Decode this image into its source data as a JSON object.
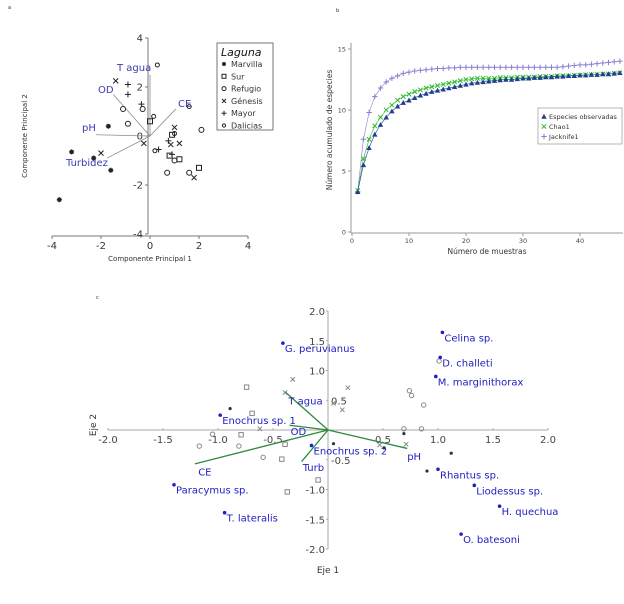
{
  "chart_data": [
    {
      "panel_letter": "a",
      "type": "scatter",
      "xlabel": "Componente Principal 1",
      "ylabel": "Componente Principal 2",
      "xlim": [
        -4,
        4
      ],
      "ylim": [
        -4,
        4
      ],
      "xticks": [
        -4,
        -2,
        0,
        2,
        4
      ],
      "yticks": [
        -4,
        -2,
        0,
        2,
        4
      ],
      "grid": false,
      "legend": {
        "title": "Laguna",
        "placement": "top-right"
      },
      "series": [
        {
          "name": "Marvilla",
          "marker": "star",
          "points": [
            [
              -3.7,
              -2.6
            ],
            [
              -3.2,
              -0.65
            ],
            [
              -2.3,
              -0.9
            ],
            [
              -1.6,
              -1.4
            ],
            [
              -1.7,
              0.4
            ]
          ]
        },
        {
          "name": "Sur",
          "marker": "square",
          "points": [
            [
              0,
              0.6
            ],
            [
              0.9,
              0.05
            ],
            [
              1.2,
              -0.95
            ],
            [
              2.0,
              -1.3
            ],
            [
              0.8,
              -0.8
            ]
          ]
        },
        {
          "name": "Refugio",
          "marker": "circle",
          "points": [
            [
              -1.1,
              1.1
            ],
            [
              -0.9,
              0.5
            ],
            [
              -0.3,
              1.1
            ],
            [
              0.7,
              -1.5
            ],
            [
              1.6,
              -1.5
            ],
            [
              2.1,
              0.25
            ],
            [
              1.0,
              -1.0
            ]
          ]
        },
        {
          "name": "Génesis",
          "marker": "x",
          "points": [
            [
              -1.4,
              2.25
            ],
            [
              -2.0,
              -0.7
            ],
            [
              1.0,
              0.35
            ],
            [
              1.2,
              -0.3
            ],
            [
              1.8,
              -1.7
            ],
            [
              0.85,
              -0.35
            ],
            [
              -0.25,
              -0.3
            ]
          ]
        },
        {
          "name": "Mayor",
          "marker": "plus",
          "points": [
            [
              -0.9,
              2.1
            ],
            [
              -0.9,
              1.7
            ],
            [
              0.35,
              -0.55
            ],
            [
              0.75,
              -0.2
            ],
            [
              0.9,
              -0.75
            ],
            [
              -0.35,
              1.3
            ]
          ]
        },
        {
          "name": "Dalicias",
          "marker": "small-circle",
          "points": [
            [
              0.3,
              2.9
            ],
            [
              1.6,
              1.2
            ],
            [
              0.15,
              0.8
            ],
            [
              1.0,
              0.1
            ],
            [
              0.2,
              -0.6
            ]
          ]
        }
      ],
      "vectors": [
        {
          "label": "T agua",
          "x": 0,
          "y": 2.5
        },
        {
          "label": "OD",
          "x": -1.5,
          "y": 1.7
        },
        {
          "label": "CE",
          "x": 1.05,
          "y": 1.1
        },
        {
          "label": "pH",
          "x": -2.2,
          "y": 0.05
        },
        {
          "label": "Turbidez",
          "x": -1.75,
          "y": -0.9
        }
      ],
      "vector_color": "#8a8a8a",
      "label_color": "#3b3bb0"
    },
    {
      "panel_letter": "b",
      "type": "line",
      "xlabel": "Número de muestras",
      "ylabel": "Número acumulado de especies",
      "xlim": [
        0,
        47.5
      ],
      "ylim": [
        0,
        15
      ],
      "xticks": [
        0,
        10,
        20,
        30,
        40
      ],
      "yticks": [
        0,
        5,
        10,
        15
      ],
      "grid": false,
      "legend": {
        "placement": "right"
      },
      "x": [
        1,
        2,
        3,
        4,
        5,
        6,
        7,
        8,
        9,
        10,
        11,
        12,
        13,
        14,
        15,
        16,
        17,
        18,
        19,
        20,
        21,
        22,
        23,
        24,
        25,
        26,
        27,
        28,
        29,
        30,
        31,
        32,
        33,
        34,
        35,
        36,
        37,
        38,
        39,
        40,
        41,
        42,
        43,
        44,
        45,
        46,
        47
      ],
      "series": [
        {
          "name": "Especies observadas",
          "marker": "triangle",
          "color": "#1f3f8f",
          "values": [
            3.3,
            5.5,
            6.9,
            8.0,
            8.8,
            9.4,
            9.9,
            10.3,
            10.6,
            10.8,
            11.0,
            11.2,
            11.35,
            11.5,
            11.6,
            11.7,
            11.8,
            11.9,
            12.0,
            12.1,
            12.2,
            12.25,
            12.3,
            12.35,
            12.4,
            12.45,
            12.5,
            12.5,
            12.55,
            12.6,
            12.6,
            12.65,
            12.65,
            12.7,
            12.7,
            12.75,
            12.75,
            12.8,
            12.8,
            12.85,
            12.85,
            12.9,
            12.9,
            12.95,
            12.95,
            13.0,
            13.05
          ]
        },
        {
          "name": "Chao1",
          "marker": "x",
          "color": "#2db82d",
          "values": [
            3.4,
            6.0,
            7.6,
            8.7,
            9.4,
            10.0,
            10.4,
            10.8,
            11.1,
            11.3,
            11.5,
            11.65,
            11.8,
            11.9,
            12.0,
            12.1,
            12.2,
            12.3,
            12.4,
            12.5,
            12.55,
            12.6,
            12.6,
            12.6,
            12.6,
            12.65,
            12.65,
            12.65,
            12.7,
            12.7,
            12.7,
            12.7,
            12.75,
            12.75,
            12.75,
            12.8,
            12.8,
            12.8,
            12.85,
            12.85,
            12.9,
            12.9,
            12.9,
            12.95,
            12.95,
            13.0,
            13.05
          ]
        },
        {
          "name": "Jacknife1",
          "marker": "plus",
          "color": "#8a7fd0",
          "values": [
            3.3,
            7.6,
            9.8,
            11.1,
            11.8,
            12.3,
            12.6,
            12.8,
            13.0,
            13.1,
            13.2,
            13.25,
            13.3,
            13.35,
            13.4,
            13.4,
            13.45,
            13.45,
            13.5,
            13.5,
            13.5,
            13.5,
            13.5,
            13.5,
            13.5,
            13.5,
            13.5,
            13.5,
            13.5,
            13.5,
            13.5,
            13.5,
            13.5,
            13.5,
            13.5,
            13.5,
            13.55,
            13.6,
            13.65,
            13.7,
            13.7,
            13.75,
            13.8,
            13.85,
            13.9,
            13.95,
            14.0
          ]
        }
      ]
    },
    {
      "panel_letter": "c",
      "type": "scatter",
      "xlabel": "Eje 1",
      "ylabel": "Eje 2",
      "xlim": [
        -2.0,
        2.0
      ],
      "ylim": [
        -2.0,
        2.0
      ],
      "xticks": [
        "-2.0",
        "-1.5",
        "-1.0",
        "-0.5",
        "0.5",
        "1.0",
        "1.5",
        "2.0"
      ],
      "yticks": [
        "2.0",
        "1.5",
        "1.0",
        "0.5",
        "-0.5",
        "-1.0",
        "-1.5",
        "-2.0"
      ],
      "grid": false,
      "species_color": "#2020c0",
      "vector_color": "#2e8b3e",
      "species": [
        {
          "label": "Celina sp.",
          "x": 1.04,
          "y": 1.64
        },
        {
          "label": "G. peruvianus",
          "x": -0.41,
          "y": 1.46
        },
        {
          "label": "D. challeti",
          "x": 1.02,
          "y": 1.22
        },
        {
          "label": "M. marginithorax",
          "x": 0.98,
          "y": 0.9
        },
        {
          "label": "Enochrus sp. 1",
          "x": -0.98,
          "y": 0.25
        },
        {
          "label": "Enochrus sp. 2",
          "x": -0.15,
          "y": -0.26
        },
        {
          "label": "Rhantus sp.",
          "x": 1.0,
          "y": -0.66
        },
        {
          "label": "Liodessus sp.",
          "x": 1.33,
          "y": -0.93
        },
        {
          "label": "H. quechua",
          "x": 1.56,
          "y": -1.28
        },
        {
          "label": "O. batesoni",
          "x": 1.21,
          "y": -1.75
        },
        {
          "label": "Paracymus sp.",
          "x": -1.4,
          "y": -0.92
        },
        {
          "label": "T. lateralis",
          "x": -0.94,
          "y": -1.39
        }
      ],
      "vectors": [
        {
          "label": "T agua",
          "x": -0.39,
          "y": 0.64,
          "lx": -0.36,
          "ly": 0.5
        },
        {
          "label": "OD",
          "x": -0.35,
          "y": 0.08,
          "lx": -0.34,
          "ly": -0.02
        },
        {
          "label": "CE",
          "x": -1.21,
          "y": -0.57,
          "lx": -1.18,
          "ly": -0.7
        },
        {
          "label": "Turb",
          "x": -0.24,
          "y": -0.53,
          "lx": -0.23,
          "ly": -0.62
        },
        {
          "label": "pH",
          "x": 0.72,
          "y": -0.31,
          "lx": 0.72,
          "ly": -0.44
        }
      ],
      "sites": [
        {
          "marker": "square",
          "points": [
            [
              -0.74,
              0.72
            ],
            [
              -0.69,
              0.28
            ],
            [
              -0.79,
              -0.08
            ],
            [
              -0.39,
              -0.24
            ],
            [
              -0.42,
              -0.49
            ],
            [
              -0.09,
              -0.84
            ],
            [
              -0.37,
              -1.04
            ]
          ]
        },
        {
          "marker": "x",
          "points": [
            [
              -0.32,
              0.85
            ],
            [
              -0.39,
              0.63
            ],
            [
              0.05,
              0.45
            ],
            [
              0.18,
              0.71
            ],
            [
              0.13,
              0.34
            ],
            [
              -0.62,
              0.02
            ],
            [
              0.71,
              -0.24
            ],
            [
              0.47,
              -0.25
            ]
          ]
        },
        {
          "marker": "circle",
          "points": [
            [
              -1.05,
              -0.07
            ],
            [
              -1.17,
              -0.27
            ],
            [
              -0.81,
              -0.27
            ],
            [
              -0.59,
              -0.46
            ],
            [
              0.74,
              0.66
            ],
            [
              0.76,
              0.58
            ],
            [
              0.87,
              0.42
            ],
            [
              0.69,
              0.02
            ],
            [
              0.85,
              0.02
            ],
            [
              1.01,
              1.16
            ]
          ]
        },
        {
          "marker": "dot",
          "points": [
            [
              -0.89,
              0.36
            ],
            [
              0.05,
              -0.23
            ],
            [
              0.69,
              -0.06
            ],
            [
              0.51,
              -0.3
            ],
            [
              0.9,
              -0.69
            ],
            [
              1.12,
              -0.39
            ]
          ]
        }
      ]
    }
  ]
}
